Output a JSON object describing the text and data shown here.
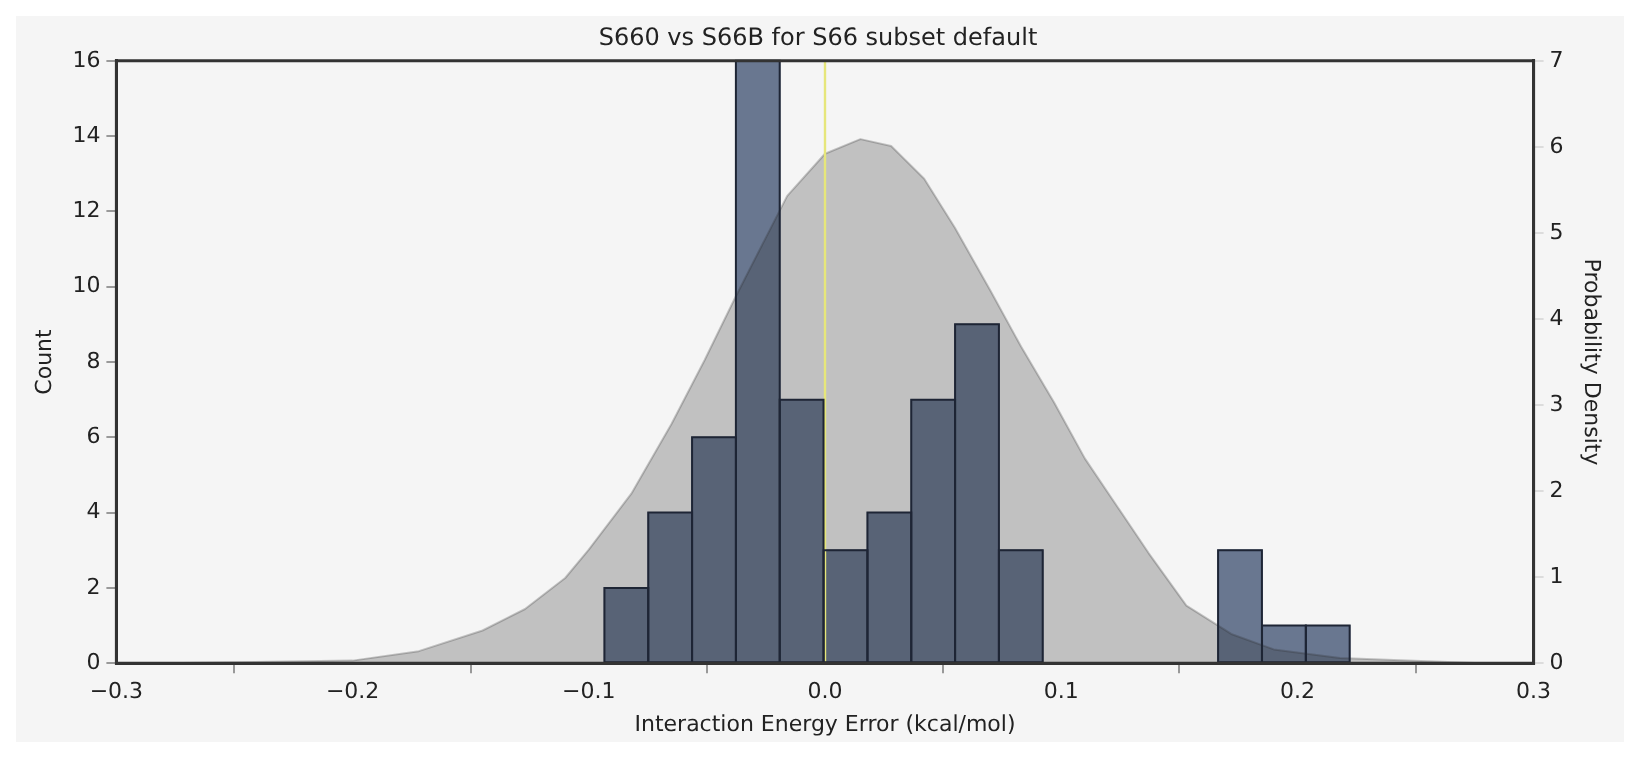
{
  "chart_data": {
    "type": "histogram",
    "title": "S660 vs S66B for S66 subset default",
    "xlabel": "Interaction Energy Error (kcal/mol)",
    "ylabel": "Count",
    "y2label": "Probability Density",
    "bins": [
      -0.279,
      -0.2604,
      -0.2419,
      -0.2233,
      -0.2048,
      -0.1862,
      -0.1676,
      -0.1491,
      -0.1305,
      -0.112,
      -0.0934,
      -0.0748,
      -0.0563,
      -0.0377,
      -0.0192,
      -0.0006,
      0.018,
      0.0365,
      0.0551,
      0.0736,
      0.0922,
      0.1108,
      0.1293,
      0.1479,
      0.1664,
      0.185,
      0.2036,
      0.2221
    ],
    "values": [
      0,
      0,
      0,
      0,
      0,
      0,
      0,
      0,
      0,
      0,
      2,
      4,
      6,
      16,
      7,
      3,
      4,
      7,
      9,
      3,
      0,
      0,
      0,
      0,
      3,
      1,
      1
    ],
    "color": "#2e4265",
    "series": [
      {
        "type": "area",
        "axis": "y2",
        "color": "#c2c2c2",
        "x": [
          -0.28,
          -0.2,
          -0.172,
          -0.145,
          -0.127,
          -0.11,
          -0.1,
          -0.082,
          -0.065,
          -0.051,
          -0.038,
          -0.016,
          0,
          0.015,
          0.028,
          0.042,
          0.055,
          0.07,
          0.083,
          0.097,
          0.11,
          0.124,
          0.137,
          0.153,
          0.172,
          0.19,
          0.218,
          0.258,
          0.278
        ],
        "values": [
          0,
          0.03,
          0.14,
          0.38,
          0.63,
          0.99,
          1.32,
          1.97,
          2.78,
          3.52,
          4.25,
          5.43,
          5.92,
          6.09,
          6.01,
          5.63,
          5.06,
          4.33,
          3.68,
          3.03,
          2.38,
          1.81,
          1.28,
          0.67,
          0.34,
          0.16,
          0.06,
          0.02,
          0
        ]
      }
    ],
    "ref_lines": [
      {
        "axis": "x",
        "value": 0,
        "color": "#e6e67a"
      }
    ],
    "xlim": [
      -0.3,
      0.3
    ],
    "xticks": [
      {
        "value": -0.3,
        "label": "−0.3"
      },
      {
        "value": -0.2,
        "label": "−0.2"
      },
      {
        "value": -0.1,
        "label": "−0.1"
      },
      {
        "value": 0,
        "label": "0.0"
      },
      {
        "value": 0.1,
        "label": "0.1"
      },
      {
        "value": 0.2,
        "label": "0.2"
      },
      {
        "value": 0.3,
        "label": "0.3"
      }
    ],
    "ylim": [
      0,
      16
    ],
    "yticks": [
      0,
      2,
      4,
      6,
      8,
      10,
      12,
      14,
      16
    ],
    "y2lim": [
      0,
      7
    ],
    "y2ticks": [
      0,
      1,
      2,
      3,
      4,
      5,
      6,
      7
    ],
    "grid": false,
    "legend": false
  }
}
